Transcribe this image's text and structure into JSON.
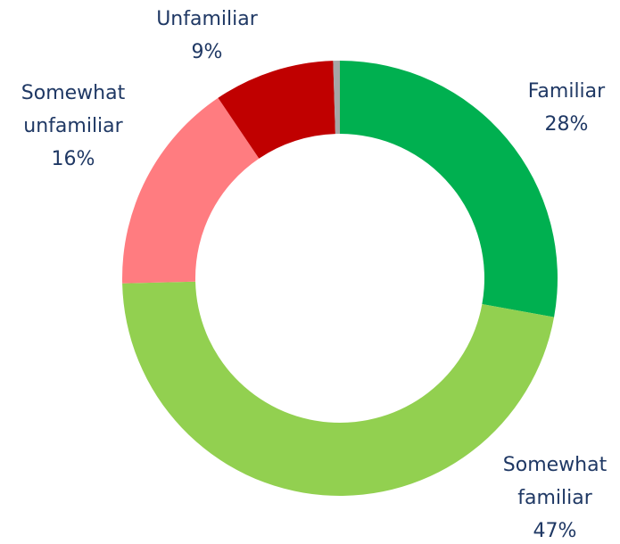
{
  "chart_data": {
    "type": "donut",
    "categories": [
      "Familiar",
      "Somewhat familiar",
      "Somewhat unfamiliar",
      "Unfamiliar",
      null
    ],
    "values": [
      28,
      47,
      16,
      9,
      0.5
    ],
    "value_labels": [
      "28%",
      "47%",
      "16%",
      "9%",
      null
    ],
    "colors": [
      "#00b050",
      "#92d050",
      "#ff7c80",
      "#c00000",
      "#a6a6a6"
    ]
  }
}
